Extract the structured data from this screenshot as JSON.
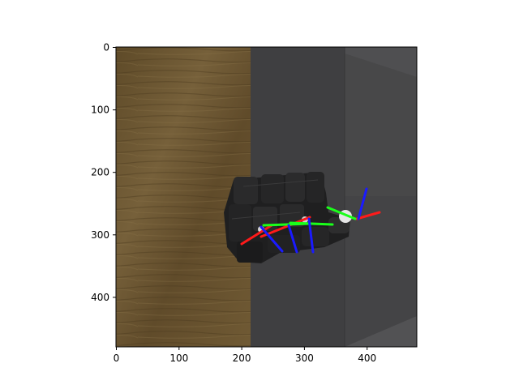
{
  "figure": {
    "type": "image_with_axes",
    "description_scene": "simulated robotic hand with pose frames over wooden table and gray wall",
    "x_ticks": [
      "0",
      "100",
      "200",
      "300",
      "400"
    ],
    "y_ticks": [
      "0",
      "100",
      "200",
      "300",
      "400"
    ],
    "x_range": [
      0,
      480
    ],
    "y_range": [
      0,
      480
    ],
    "colors": {
      "wood": "#6b5430",
      "wall": "#3e3e40",
      "wall_light": "#4a4a4c",
      "frame_x": "#ff1a1a",
      "frame_y": "#1aff1a",
      "frame_z": "#1a1aff"
    }
  }
}
